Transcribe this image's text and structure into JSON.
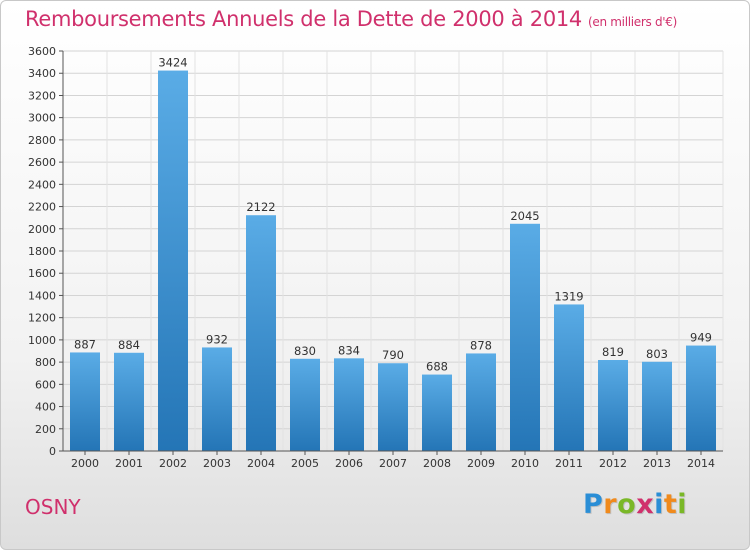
{
  "title": "Remboursements Annuels de la Dette de 2000 à 2014",
  "title_unit": "(en milliers d'€)",
  "commune": "OSNY",
  "logo": {
    "letters": [
      "P",
      "r",
      "o",
      "x",
      "i",
      "t",
      "i"
    ],
    "colors": [
      "#2a8ed6",
      "#f08a1c",
      "#7ab827",
      "#d0306c",
      "#2a8ed6",
      "#f08a1c",
      "#7ab827"
    ]
  },
  "colors": {
    "accent": "#d0306c",
    "bar_top": "#5aace6",
    "bar_bottom": "#2475b6"
  },
  "chart_data": {
    "type": "bar",
    "categories": [
      "2000",
      "2001",
      "2002",
      "2003",
      "2004",
      "2005",
      "2006",
      "2007",
      "2008",
      "2009",
      "2010",
      "2011",
      "2012",
      "2013",
      "2014"
    ],
    "values": [
      887,
      884,
      3424,
      932,
      2122,
      830,
      834,
      790,
      688,
      878,
      2045,
      1319,
      819,
      803,
      949
    ],
    "ylim": [
      0,
      3600
    ],
    "yticks": [
      0,
      200,
      400,
      600,
      800,
      1000,
      1200,
      1400,
      1600,
      1800,
      2000,
      2200,
      2400,
      2600,
      2800,
      3000,
      3200,
      3400,
      3600
    ],
    "grid": true,
    "legend": "none"
  }
}
